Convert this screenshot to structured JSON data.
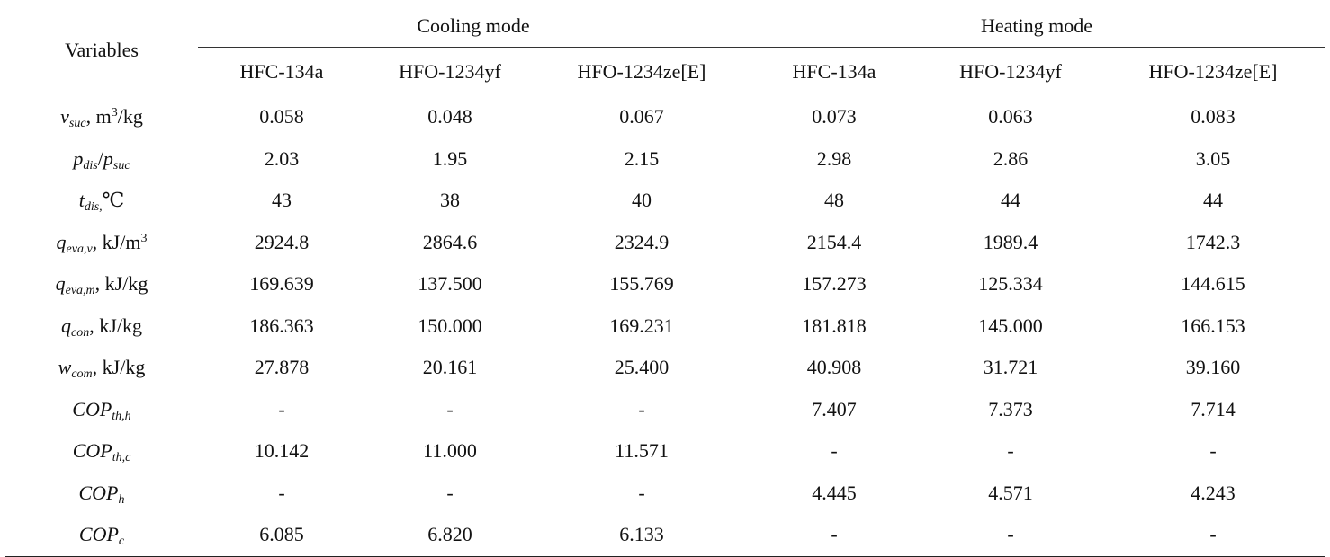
{
  "header": {
    "variables": "Variables",
    "cooling_mode": "Cooling mode",
    "heating_mode": "Heating mode",
    "refrigerants": [
      "HFC-134a",
      "HFO-1234yf",
      "HFO-1234ze[E]",
      "HFC-134a",
      "HFO-1234yf",
      "HFO-1234ze[E]"
    ]
  },
  "rows": [
    {
      "main": "v",
      "sub": "suc",
      "suffix": ", m",
      "sup": "3",
      "after": "/kg",
      "values": [
        "0.058",
        "0.048",
        "0.067",
        "0.073",
        "0.063",
        "0.083"
      ]
    },
    {
      "main": "p",
      "sub": "dis",
      "suffix": "/",
      "main2": "p",
      "sub2": "suc",
      "values": [
        "2.03",
        "1.95",
        "2.15",
        "2.98",
        "2.86",
        "3.05"
      ]
    },
    {
      "main": "t",
      "sub": "dis,",
      "suffix": "℃",
      "values": [
        "43",
        "38",
        "40",
        "48",
        "44",
        "44"
      ]
    },
    {
      "main": "q",
      "sub": "eva,v",
      "suffix": ", kJ/m",
      "sup": "3",
      "values": [
        "2924.8",
        "2864.6",
        "2324.9",
        "2154.4",
        "1989.4",
        "1742.3"
      ]
    },
    {
      "main": "q",
      "sub": "eva,m",
      "suffix": ", kJ/kg",
      "values": [
        "169.639",
        "137.500",
        "155.769",
        "157.273",
        "125.334",
        "144.615"
      ]
    },
    {
      "main": "q",
      "sub": "con",
      "suffix": ", kJ/kg",
      "values": [
        "186.363",
        "150.000",
        "169.231",
        "181.818",
        "145.000",
        "166.153"
      ]
    },
    {
      "main": "w",
      "sub": "com",
      "suffix": ", kJ/kg",
      "values": [
        "27.878",
        "20.161",
        "25.400",
        "40.908",
        "31.721",
        "39.160"
      ]
    },
    {
      "main": "COP",
      "sub": "th,h",
      "values": [
        "-",
        "-",
        "-",
        "7.407",
        "7.373",
        "7.714"
      ]
    },
    {
      "main": "COP",
      "sub": "th,c",
      "values": [
        "10.142",
        "11.000",
        "11.571",
        "-",
        "-",
        "-"
      ]
    },
    {
      "main": "COP",
      "sub": "h",
      "values": [
        "-",
        "-",
        "-",
        "4.445",
        "4.571",
        "4.243"
      ]
    },
    {
      "main": "COP",
      "sub": "c",
      "values": [
        "6.085",
        "6.820",
        "6.133",
        "-",
        "-",
        "-"
      ]
    }
  ]
}
